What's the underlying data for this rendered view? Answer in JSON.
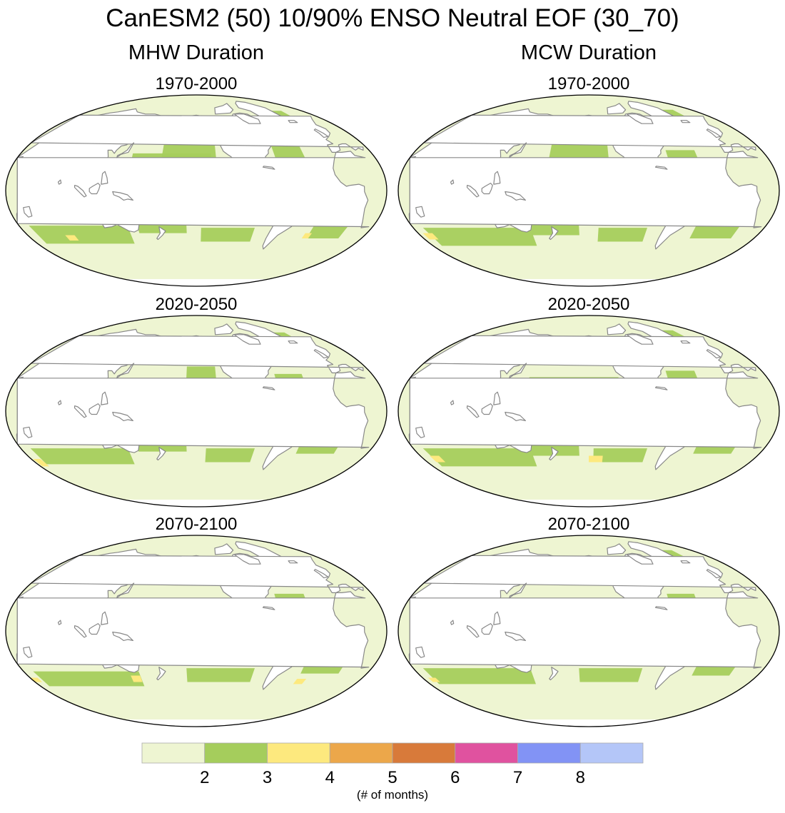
{
  "title": "CanESM2 (50) 10/90% ENSO Neutral EOF (30_70)",
  "columns": [
    {
      "title": "MHW Duration"
    },
    {
      "title": "MCW Duration"
    }
  ],
  "panels": [
    {
      "column": "MHW Duration",
      "period": "1970-2000"
    },
    {
      "column": "MCW Duration",
      "period": "1970-2000"
    },
    {
      "column": "MHW Duration",
      "period": "2020-2050"
    },
    {
      "column": "MCW Duration",
      "period": "2020-2050"
    },
    {
      "column": "MHW Duration",
      "period": "2070-2100"
    },
    {
      "column": "MCW Duration",
      "period": "2070-2100"
    }
  ],
  "legend": {
    "units": "(# of months)",
    "tick_labels": [
      "2",
      "3",
      "4",
      "5",
      "6",
      "7",
      "8"
    ],
    "colors": [
      "#eef5d2",
      "#a5cd5c",
      "#fde97e",
      "#eca74a",
      "#d87a3a",
      "#e0529f",
      "#8293f5",
      "#b4c6f8"
    ]
  },
  "colors": {
    "land": "#ffffff",
    "coastline": "#888888",
    "map_border": "#000000"
  }
}
